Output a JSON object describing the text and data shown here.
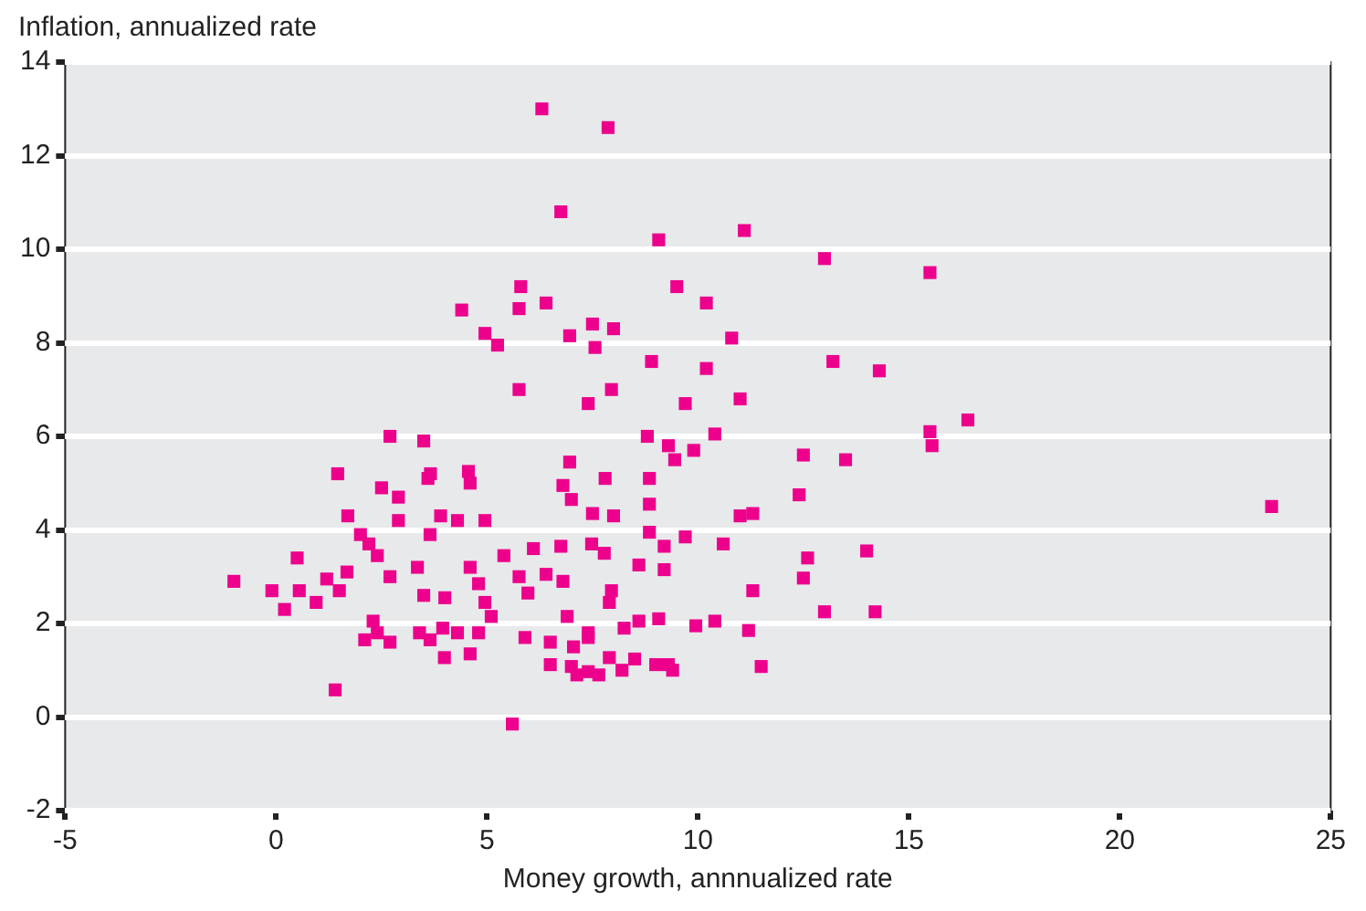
{
  "chart_data": {
    "type": "scatter",
    "xlabel": "Money growth, annnualized rate",
    "ylabel": "Inflation, annualized rate",
    "xlim": [
      -5,
      25
    ],
    "xticks": [
      -5,
      0,
      5,
      10,
      15,
      20,
      25
    ],
    "ylim": [
      -2,
      14
    ],
    "yticks": [
      -2,
      0,
      2,
      4,
      6,
      8,
      10,
      12,
      14
    ],
    "grid": "y",
    "marker": "square",
    "series": [
      {
        "color": "#ec008c",
        "x": [
          6.3,
          7.87,
          6.75,
          9.07,
          11.1,
          13.0,
          15.5,
          5.8,
          9.5,
          4.4,
          5.76,
          6.4,
          10.2,
          7.5,
          8.0,
          4.95,
          6.96,
          5.25,
          7.56,
          10.8,
          8.9,
          13.2,
          10.2,
          14.3,
          7.95,
          5.76,
          9.7,
          7.4,
          11.0,
          16.4,
          15.5,
          10.4,
          2.7,
          3.5,
          8.8,
          15.55,
          9.3,
          9.9,
          9.45,
          12.5,
          13.5,
          6.96,
          1.46,
          3.66,
          4.56,
          3.6,
          4.6,
          8.85,
          7.8,
          6.8,
          2.5,
          2.9,
          7.0,
          12.4,
          8.85,
          23.6,
          4.95,
          3.9,
          2.9,
          1.7,
          7.5,
          8.0,
          11.0,
          11.3,
          4.3,
          2.0,
          3.65,
          8.85,
          9.7,
          2.2,
          7.48,
          6.1,
          6.75,
          9.2,
          10.6,
          14.0,
          0.5,
          2.4,
          5.4,
          7.78,
          12.6,
          1.68,
          3.35,
          4.6,
          6.4,
          8.6,
          9.2,
          -1.0,
          1.2,
          2.7,
          5.76,
          12.5,
          6.8,
          4.8,
          -0.1,
          0.55,
          1.5,
          5.97,
          7.95,
          11.3,
          3.5,
          4.0,
          0.95,
          7.9,
          4.95,
          0.2,
          5.1,
          6.9,
          13.0,
          14.2,
          2.3,
          8.6,
          9.07,
          10.4,
          3.95,
          4.3,
          8.25,
          9.95,
          11.2,
          2.4,
          3.4,
          4.8,
          7.4,
          5.9,
          3.65,
          2.1,
          2.7,
          7.4,
          6.5,
          4.6,
          7.05,
          3.99,
          7.9,
          8.5,
          9.0,
          9.3,
          11.5,
          6.5,
          7.0,
          8.2,
          7.4,
          9.4,
          7.65,
          7.13,
          1.4,
          5.6
        ],
        "values": [
          13.0,
          12.6,
          10.8,
          10.2,
          10.4,
          9.8,
          9.5,
          9.2,
          9.2,
          8.7,
          8.73,
          8.85,
          8.85,
          8.4,
          8.3,
          8.2,
          8.15,
          7.95,
          7.9,
          8.1,
          7.6,
          7.6,
          7.45,
          7.4,
          7.0,
          7.0,
          6.7,
          6.7,
          6.8,
          6.35,
          6.1,
          6.05,
          6.0,
          5.9,
          6.0,
          5.8,
          5.8,
          5.7,
          5.5,
          5.6,
          5.5,
          5.45,
          5.2,
          5.2,
          5.25,
          5.1,
          5.0,
          5.1,
          5.1,
          4.95,
          4.9,
          4.7,
          4.65,
          4.75,
          4.55,
          4.5,
          4.2,
          4.3,
          4.2,
          4.3,
          4.35,
          4.3,
          4.3,
          4.35,
          4.2,
          3.9,
          3.9,
          3.95,
          3.85,
          3.7,
          3.7,
          3.6,
          3.65,
          3.65,
          3.7,
          3.55,
          3.4,
          3.45,
          3.45,
          3.5,
          3.4,
          3.1,
          3.2,
          3.2,
          3.05,
          3.25,
          3.15,
          2.9,
          2.95,
          3.0,
          3.0,
          2.97,
          2.9,
          2.85,
          2.7,
          2.7,
          2.7,
          2.65,
          2.7,
          2.7,
          2.6,
          2.55,
          2.45,
          2.45,
          2.45,
          2.3,
          2.15,
          2.15,
          2.25,
          2.25,
          2.05,
          2.05,
          2.1,
          2.05,
          1.9,
          1.8,
          1.9,
          1.95,
          1.85,
          1.8,
          1.8,
          1.8,
          1.8,
          1.7,
          1.65,
          1.65,
          1.6,
          1.7,
          1.6,
          1.35,
          1.5,
          1.27,
          1.27,
          1.24,
          1.12,
          1.12,
          1.08,
          1.12,
          1.08,
          1.0,
          0.97,
          1.0,
          0.9,
          0.9,
          0.58,
          -0.15
        ]
      }
    ]
  }
}
